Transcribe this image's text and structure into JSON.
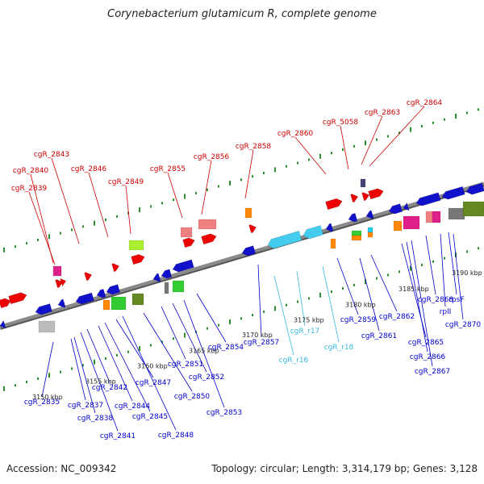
{
  "title": "Corynebacterium glutamicum R, complete genome",
  "footer": {
    "accession": "Accession: NC_009342",
    "summary": "Topology: circular; Length: 3,314,179 bp; Genes: 3,128"
  },
  "colors": {
    "backbone": "#8a8a8a",
    "label_top": "#cc0000",
    "label_bottom": "#0000cc",
    "label_rna": "#33bbdd",
    "tick": "#2e8b2e"
  },
  "scale_labels": [
    "3150 kbp",
    "3155 kbp",
    "3160 kbp",
    "3165 kbp",
    "3170 kbp",
    "3175 kbp",
    "3180 kbp",
    "3185 kbp",
    "3190 kbp"
  ],
  "top_labels": [
    "cgR_2839",
    "cgR_2840",
    "cgR_2843",
    "cgR_2846",
    "cgR_2849",
    "cgR_2855",
    "cgR_2856",
    "cgR_2858",
    "cgR_2860",
    "cgR_5058",
    "cgR_2863",
    "cgR_2864"
  ],
  "bottom_labels": [
    "cgR_2835",
    "cgR_2837",
    "cgR_2838",
    "cgR_2841",
    "cgR_2842",
    "cgR_2844",
    "cgR_2845",
    "cgR_2847",
    "cgR_2848",
    "cgR_2850",
    "cgR_2851",
    "cgR_2852",
    "cgR_2853",
    "cgR_2854",
    "cgR_2857",
    "cgR_2859",
    "cgR_2861",
    "cgR_2862",
    "cgR_2865",
    "cgR_2866",
    "cgR_2867",
    "cgR_2868",
    "rplI",
    "rpsF",
    "cgR_2870"
  ],
  "rna_labels": [
    "cgR_r16",
    "cgR_r17",
    "cgR_r18"
  ]
}
